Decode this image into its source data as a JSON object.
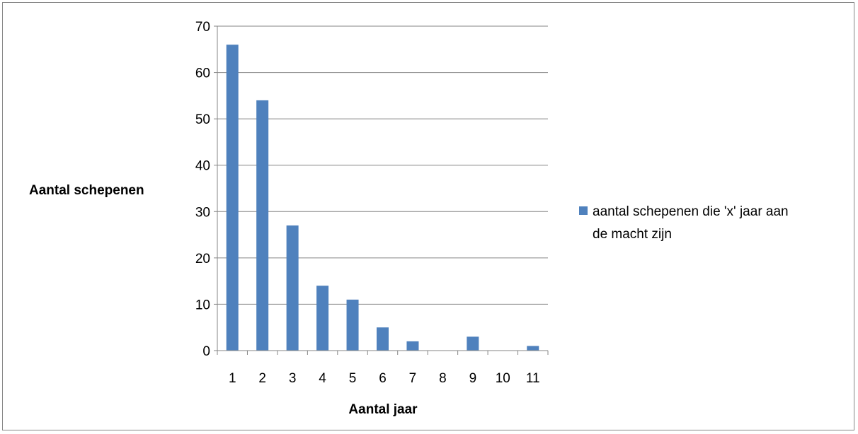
{
  "chart_data": {
    "type": "bar",
    "categories": [
      "1",
      "2",
      "3",
      "4",
      "5",
      "6",
      "7",
      "8",
      "9",
      "10",
      "11"
    ],
    "series": [
      {
        "name": "aantal schepenen die 'x' jaar aan de macht zijn",
        "values": [
          66,
          54,
          27,
          14,
          11,
          5,
          2,
          0,
          3,
          0,
          1
        ],
        "color": "#4F81BD"
      }
    ],
    "xlabel": "Aantal jaar",
    "ylabel": "Aantal schepenen",
    "ylim": [
      0,
      70
    ],
    "yticks": [
      0,
      10,
      20,
      30,
      40,
      50,
      60,
      70
    ],
    "grid": true,
    "legend_position": "right",
    "legend_lines": [
      "aantal schepenen die 'x' jaar aan",
      "de macht zijn"
    ]
  }
}
